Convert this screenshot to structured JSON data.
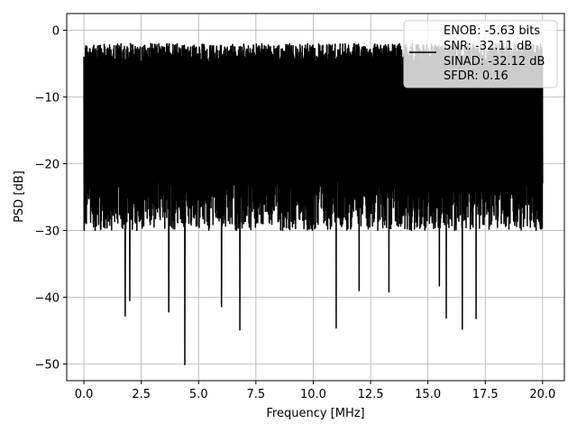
{
  "chart_data": {
    "type": "line",
    "xlabel": "Frequency [MHz]",
    "ylabel": "PSD [dB]",
    "xlim": [
      -0.75,
      20.95
    ],
    "ylim": [
      -52.5,
      2.5
    ],
    "xticks": [
      0.0,
      2.5,
      5.0,
      7.5,
      10.0,
      12.5,
      15.0,
      17.5,
      20.0
    ],
    "xtick_labels": [
      "0.0",
      "2.5",
      "5.0",
      "7.5",
      "10.0",
      "12.5",
      "15.0",
      "17.5",
      "20.0"
    ],
    "yticks": [
      0,
      -10,
      -20,
      -30,
      -40,
      -50
    ],
    "ytick_labels": [
      "0",
      "−10",
      "−20",
      "−30",
      "−40",
      "−50"
    ],
    "grid": true,
    "legend_placement": "top-right",
    "series": [
      {
        "color": "#000000",
        "x_range": [
          0.0,
          20.0
        ],
        "noise_band_top": [
          -2,
          -5
        ],
        "noise_band_bottom": [
          -22,
          -30
        ],
        "deep_notches": [
          {
            "x": 1.8,
            "y": -42.8
          },
          {
            "x": 2.0,
            "y": -40.5
          },
          {
            "x": 3.7,
            "y": -42.2
          },
          {
            "x": 4.4,
            "y": -50.1
          },
          {
            "x": 6.0,
            "y": -41.4
          },
          {
            "x": 6.8,
            "y": -44.9
          },
          {
            "x": 11.0,
            "y": -44.6
          },
          {
            "x": 15.8,
            "y": -43.1
          },
          {
            "x": 16.5,
            "y": -44.8
          },
          {
            "x": 17.1,
            "y": -43.2
          },
          {
            "x": 15.5,
            "y": -38.3
          },
          {
            "x": 12.0,
            "y": -39.0
          },
          {
            "x": 13.3,
            "y": -39.2
          }
        ]
      }
    ],
    "legend": {
      "entries": [
        "ENOB: -5.63 bits",
        "SNR: -32.11 dB",
        "SINAD: -32.12 dB",
        "SFDR: 0.16"
      ]
    }
  }
}
